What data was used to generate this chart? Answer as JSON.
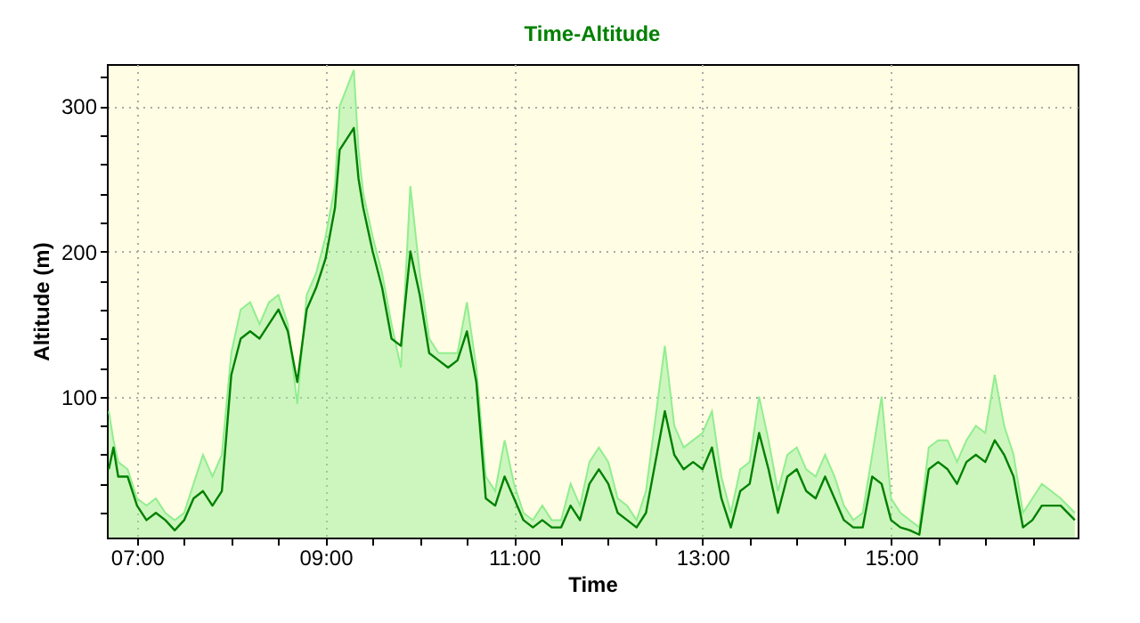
{
  "chart_data": {
    "type": "line",
    "title": "Time-Altitude",
    "xlabel": "Time",
    "ylabel": "Altitude (m)",
    "x": [
      6.7,
      6.75,
      6.8,
      6.9,
      7.0,
      7.1,
      7.2,
      7.3,
      7.4,
      7.5,
      7.6,
      7.7,
      7.8,
      7.9,
      8.0,
      8.1,
      8.2,
      8.3,
      8.4,
      8.5,
      8.6,
      8.7,
      8.8,
      8.9,
      9.0,
      9.1,
      9.15,
      9.3,
      9.35,
      9.4,
      9.5,
      9.6,
      9.7,
      9.8,
      9.9,
      10.0,
      10.1,
      10.2,
      10.3,
      10.4,
      10.5,
      10.6,
      10.7,
      10.8,
      10.9,
      11.0,
      11.1,
      11.2,
      11.3,
      11.4,
      11.5,
      11.6,
      11.7,
      11.8,
      11.9,
      12.0,
      12.1,
      12.2,
      12.3,
      12.4,
      12.6,
      12.7,
      12.8,
      12.9,
      13.0,
      13.1,
      13.2,
      13.3,
      13.4,
      13.5,
      13.6,
      13.7,
      13.8,
      13.9,
      14.0,
      14.1,
      14.2,
      14.3,
      14.4,
      14.5,
      14.6,
      14.7,
      14.8,
      14.9,
      15.0,
      15.1,
      15.2,
      15.3,
      15.4,
      15.5,
      15.6,
      15.7,
      15.8,
      15.9,
      16.0,
      16.1,
      16.2,
      16.3,
      16.4,
      16.5,
      16.6,
      16.7,
      16.8,
      16.95
    ],
    "series": [
      {
        "type": "area",
        "color": "#90ee90",
        "values": [
          90,
          70,
          55,
          50,
          30,
          25,
          30,
          20,
          15,
          20,
          40,
          60,
          45,
          60,
          130,
          160,
          165,
          150,
          165,
          170,
          150,
          95,
          170,
          185,
          210,
          245,
          300,
          325,
          270,
          240,
          210,
          185,
          150,
          120,
          245,
          185,
          140,
          130,
          130,
          130,
          165,
          120,
          45,
          35,
          70,
          40,
          20,
          15,
          25,
          15,
          15,
          40,
          25,
          55,
          65,
          55,
          30,
          25,
          15,
          35,
          135,
          80,
          65,
          70,
          75,
          90,
          45,
          20,
          50,
          55,
          100,
          70,
          35,
          60,
          65,
          50,
          45,
          60,
          45,
          25,
          15,
          20,
          60,
          100,
          30,
          20,
          15,
          10,
          65,
          70,
          70,
          55,
          70,
          80,
          75,
          115,
          80,
          60,
          20,
          30,
          40,
          35,
          30,
          20
        ]
      },
      {
        "type": "line",
        "color": "#008000",
        "values": [
          50,
          65,
          45,
          45,
          25,
          15,
          20,
          15,
          8,
          15,
          30,
          35,
          25,
          35,
          115,
          140,
          145,
          140,
          150,
          160,
          145,
          110,
          160,
          175,
          195,
          230,
          270,
          285,
          250,
          230,
          200,
          175,
          140,
          135,
          200,
          170,
          130,
          125,
          120,
          125,
          145,
          110,
          30,
          25,
          45,
          30,
          15,
          10,
          15,
          10,
          10,
          25,
          15,
          40,
          50,
          40,
          20,
          15,
          10,
          20,
          90,
          60,
          50,
          55,
          50,
          65,
          30,
          10,
          35,
          40,
          75,
          50,
          20,
          45,
          50,
          35,
          30,
          45,
          30,
          15,
          10,
          10,
          45,
          40,
          15,
          10,
          8,
          5,
          50,
          55,
          50,
          40,
          55,
          60,
          55,
          70,
          60,
          45,
          10,
          15,
          25,
          25,
          25,
          15
        ]
      }
    ],
    "xlim": [
      6.68,
      16.98
    ],
    "xticks": [
      {
        "value": 7,
        "label": "07:00"
      },
      {
        "value": 7.5,
        "label": null
      },
      {
        "value": 8,
        "label": null
      },
      {
        "value": 8.5,
        "label": null
      },
      {
        "value": 9,
        "label": "09:00"
      },
      {
        "value": 9.5,
        "label": null
      },
      {
        "value": 10,
        "label": null
      },
      {
        "value": 10.5,
        "label": null
      },
      {
        "value": 11,
        "label": "11:00"
      },
      {
        "value": 11.5,
        "label": null
      },
      {
        "value": 12,
        "label": null
      },
      {
        "value": 12.5,
        "label": null
      },
      {
        "value": 13,
        "label": "13:00"
      },
      {
        "value": 13.5,
        "label": null
      },
      {
        "value": 14,
        "label": null
      },
      {
        "value": 14.5,
        "label": null
      },
      {
        "value": 15,
        "label": "15:00"
      },
      {
        "value": 15.5,
        "label": null
      },
      {
        "value": 16,
        "label": null
      },
      {
        "value": 16.5,
        "label": null
      }
    ],
    "ylim": [
      3,
      329
    ],
    "yticks": [
      {
        "value": 20,
        "label": null
      },
      {
        "value": 40,
        "label": null
      },
      {
        "value": 60,
        "label": null
      },
      {
        "value": 80,
        "label": null
      },
      100,
      {
        "value": 120,
        "label": null
      },
      {
        "value": 140,
        "label": null
      },
      {
        "value": 160,
        "label": null
      },
      {
        "value": 180,
        "label": null
      },
      200,
      {
        "value": 220,
        "label": null
      },
      {
        "value": 240,
        "label": null
      },
      {
        "value": 260,
        "label": null
      },
      {
        "value": 280,
        "label": null
      },
      300,
      {
        "value": 320,
        "label": null
      }
    ],
    "grid": true,
    "legend": false,
    "line_style": "solid",
    "marker": "none"
  }
}
